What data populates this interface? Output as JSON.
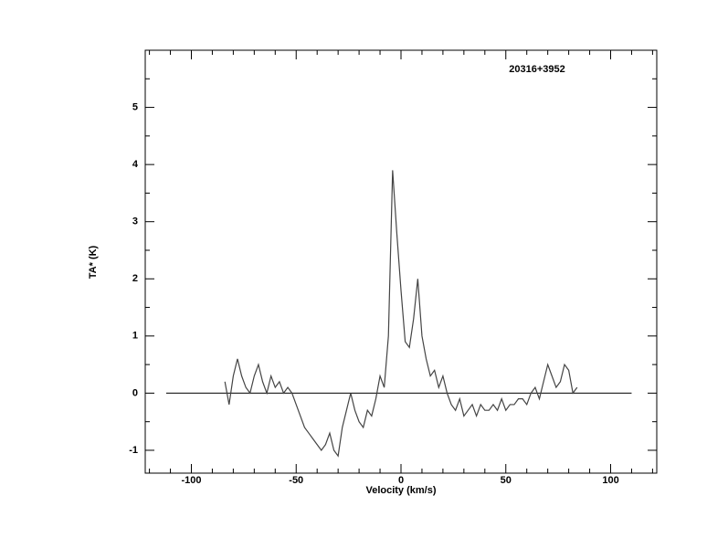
{
  "chart_data": {
    "type": "line",
    "title": "20316+3952",
    "x_label": "Velocity (km/s)",
    "y_label": "TA* (K)",
    "xlim": [
      -122,
      122
    ],
    "ylim": [
      -1.4,
      6
    ],
    "xticks": [
      -100,
      -50,
      0,
      50,
      100
    ],
    "yticks": [
      -1,
      0,
      1,
      2,
      3,
      4,
      5
    ],
    "xticks_minor": [
      -120,
      -110,
      -90,
      -80,
      -70,
      -60,
      -40,
      -30,
      -20,
      -10,
      10,
      20,
      30,
      40,
      60,
      70,
      80,
      90,
      110,
      120
    ],
    "yticks_minor": [
      -0.5,
      0.5,
      1.5,
      2.5,
      3.5,
      4.5,
      5.5
    ],
    "hline": {
      "y": 0,
      "x": [
        -112,
        110
      ]
    },
    "grid": false,
    "series": [
      {
        "color": "#444444",
        "x": [
          -84,
          -82,
          -80,
          -78,
          -76,
          -74,
          -72,
          -70,
          -68,
          -66,
          -64,
          -62,
          -60,
          -58,
          -56,
          -54,
          -52,
          -50,
          -48,
          -46,
          -44,
          -42,
          -40,
          -38,
          -36,
          -34,
          -32,
          -30,
          -28,
          -26,
          -24,
          -22,
          -20,
          -18,
          -16,
          -14,
          -12,
          -10,
          -8,
          -6,
          -4,
          -2,
          0,
          2,
          4,
          6,
          8,
          10,
          12,
          14,
          16,
          18,
          20,
          22,
          24,
          26,
          28,
          30,
          32,
          34,
          36,
          38,
          40,
          42,
          44,
          46,
          48,
          50,
          52,
          54,
          56,
          58,
          60,
          62,
          64,
          66,
          68,
          70,
          72,
          74,
          76,
          78,
          80,
          82,
          84
        ],
        "values": [
          0.2,
          -0.2,
          0.3,
          0.6,
          0.3,
          0.1,
          0.0,
          0.3,
          0.5,
          0.2,
          0.0,
          0.3,
          0.1,
          0.2,
          0.0,
          0.1,
          0.0,
          -0.2,
          -0.4,
          -0.6,
          -0.7,
          -0.8,
          -0.9,
          -1.0,
          -0.9,
          -0.7,
          -1.0,
          -1.1,
          -0.6,
          -0.3,
          0.0,
          -0.3,
          -0.5,
          -0.6,
          -0.3,
          -0.4,
          -0.1,
          0.3,
          0.1,
          1.0,
          3.9,
          2.8,
          1.8,
          0.9,
          0.8,
          1.3,
          2.0,
          1.0,
          0.6,
          0.3,
          0.4,
          0.1,
          0.3,
          0.0,
          -0.2,
          -0.3,
          -0.1,
          -0.4,
          -0.3,
          -0.2,
          -0.4,
          -0.2,
          -0.3,
          -0.3,
          -0.2,
          -0.3,
          -0.1,
          -0.3,
          -0.2,
          -0.2,
          -0.1,
          -0.1,
          -0.2,
          0.0,
          0.1,
          -0.1,
          0.2,
          0.5,
          0.3,
          0.1,
          0.2,
          0.5,
          0.4,
          0.0,
          0.1
        ]
      }
    ]
  }
}
